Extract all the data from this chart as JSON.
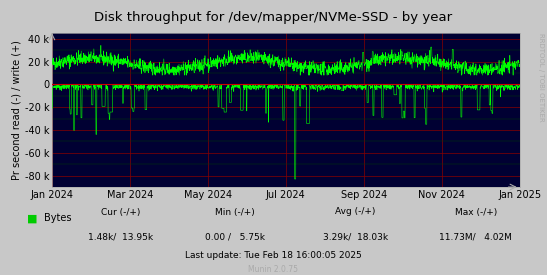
{
  "title": "Disk throughput for /dev/mapper/NVMe-SSD - by year",
  "ylabel": "Pr second read (-) / write (+)",
  "xlabel_ticks": [
    "Jan 2024",
    "Mar 2024",
    "May 2024",
    "Jul 2024",
    "Sep 2024",
    "Nov 2024",
    "Jan 2025"
  ],
  "ylim": [
    -90000,
    45000
  ],
  "yticks": [
    -80000,
    -60000,
    -40000,
    -20000,
    0,
    20000,
    40000
  ],
  "ytick_labels": [
    "-80 k",
    "-60 k",
    "-40 k",
    "-20 k",
    "0",
    "20 k",
    "40 k"
  ],
  "bg_color": "#000033",
  "plot_bg_color": "#000033",
  "grid_color_major": "#880000",
  "grid_color_minor": "#004400",
  "line_color": "#00ff00",
  "zero_line_color": "#ff0000",
  "legend_text": "Bytes",
  "legend_color": "#00cc00",
  "cur_label": "Cur (-/+)",
  "min_label": "Min (-/+)",
  "avg_label": "Avg (-/+)",
  "max_label": "Max (-/+)",
  "cur_val": "1.48k/  13.95k",
  "min_val": "0.00 /   5.75k",
  "avg_val": "3.29k/  18.03k",
  "max_val": "11.73M/   4.02M",
  "last_update": "Last update: Tue Feb 18 16:00:05 2025",
  "munin_version": "Munin 2.0.75",
  "rrdtool_label": "RRDTOOL / TOBI OETIKER",
  "text_color": "#aaaaaa",
  "title_color": "#000000",
  "bottom_text_color": "#999999"
}
